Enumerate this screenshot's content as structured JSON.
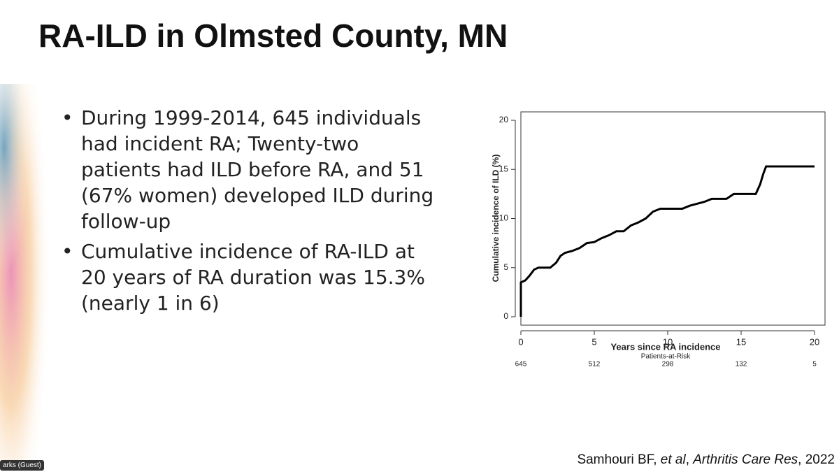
{
  "slide": {
    "title": "RA-ILD in Olmsted County, MN",
    "bullets": [
      [
        "During 1999-2014, 645 individuals",
        "had incident RA; Twenty-two",
        "patients had ILD before RA, and 51",
        "(67% women) developed ILD during",
        "follow-up"
      ],
      [
        "Cumulative incidence of RA-ILD at",
        "20 years of RA duration was 15.3%",
        "(nearly 1 in 6)"
      ]
    ],
    "citation": [
      "Samhouri BF, ",
      "et al",
      ", ",
      "Arthritis Care Res",
      ", 2022"
    ]
  },
  "ui": {
    "participant": "arks (Guest)"
  },
  "chart_data": {
    "type": "line",
    "x_label": "Years since RA incidence",
    "y_label": "Cumulative incidence of ILD (%)",
    "x": [
      0,
      0,
      0.3,
      0.6,
      0.9,
      1.2,
      2.0,
      2.4,
      2.7,
      3.0,
      3.5,
      4.0,
      4.5,
      5.0,
      5.5,
      6.0,
      6.5,
      7.0,
      7.5,
      8.0,
      8.5,
      9.0,
      9.5,
      11.0,
      11.5,
      12.5,
      13.0,
      14.0,
      14.5,
      16.0,
      16.3,
      16.5,
      16.7,
      20.0
    ],
    "series": [
      {
        "name": "RA-ILD",
        "color": "#000000",
        "values": [
          0,
          3.5,
          3.7,
          4.2,
          4.8,
          5.0,
          5.0,
          5.5,
          6.2,
          6.5,
          6.7,
          7.0,
          7.5,
          7.6,
          8.0,
          8.3,
          8.7,
          8.7,
          9.3,
          9.6,
          10.0,
          10.7,
          11.0,
          11.0,
          11.3,
          11.7,
          12.0,
          12.0,
          12.5,
          12.5,
          13.5,
          14.5,
          15.3,
          15.3
        ]
      }
    ],
    "xlim": [
      0,
      20
    ],
    "xticks": [
      0,
      5,
      10,
      15,
      20
    ],
    "ylim": [
      0,
      20
    ],
    "yticks": [
      0,
      5,
      10,
      15,
      20
    ],
    "at_risk": {
      "label": "Patients-at-Risk",
      "values": [
        645,
        512,
        298,
        132,
        5
      ]
    }
  }
}
